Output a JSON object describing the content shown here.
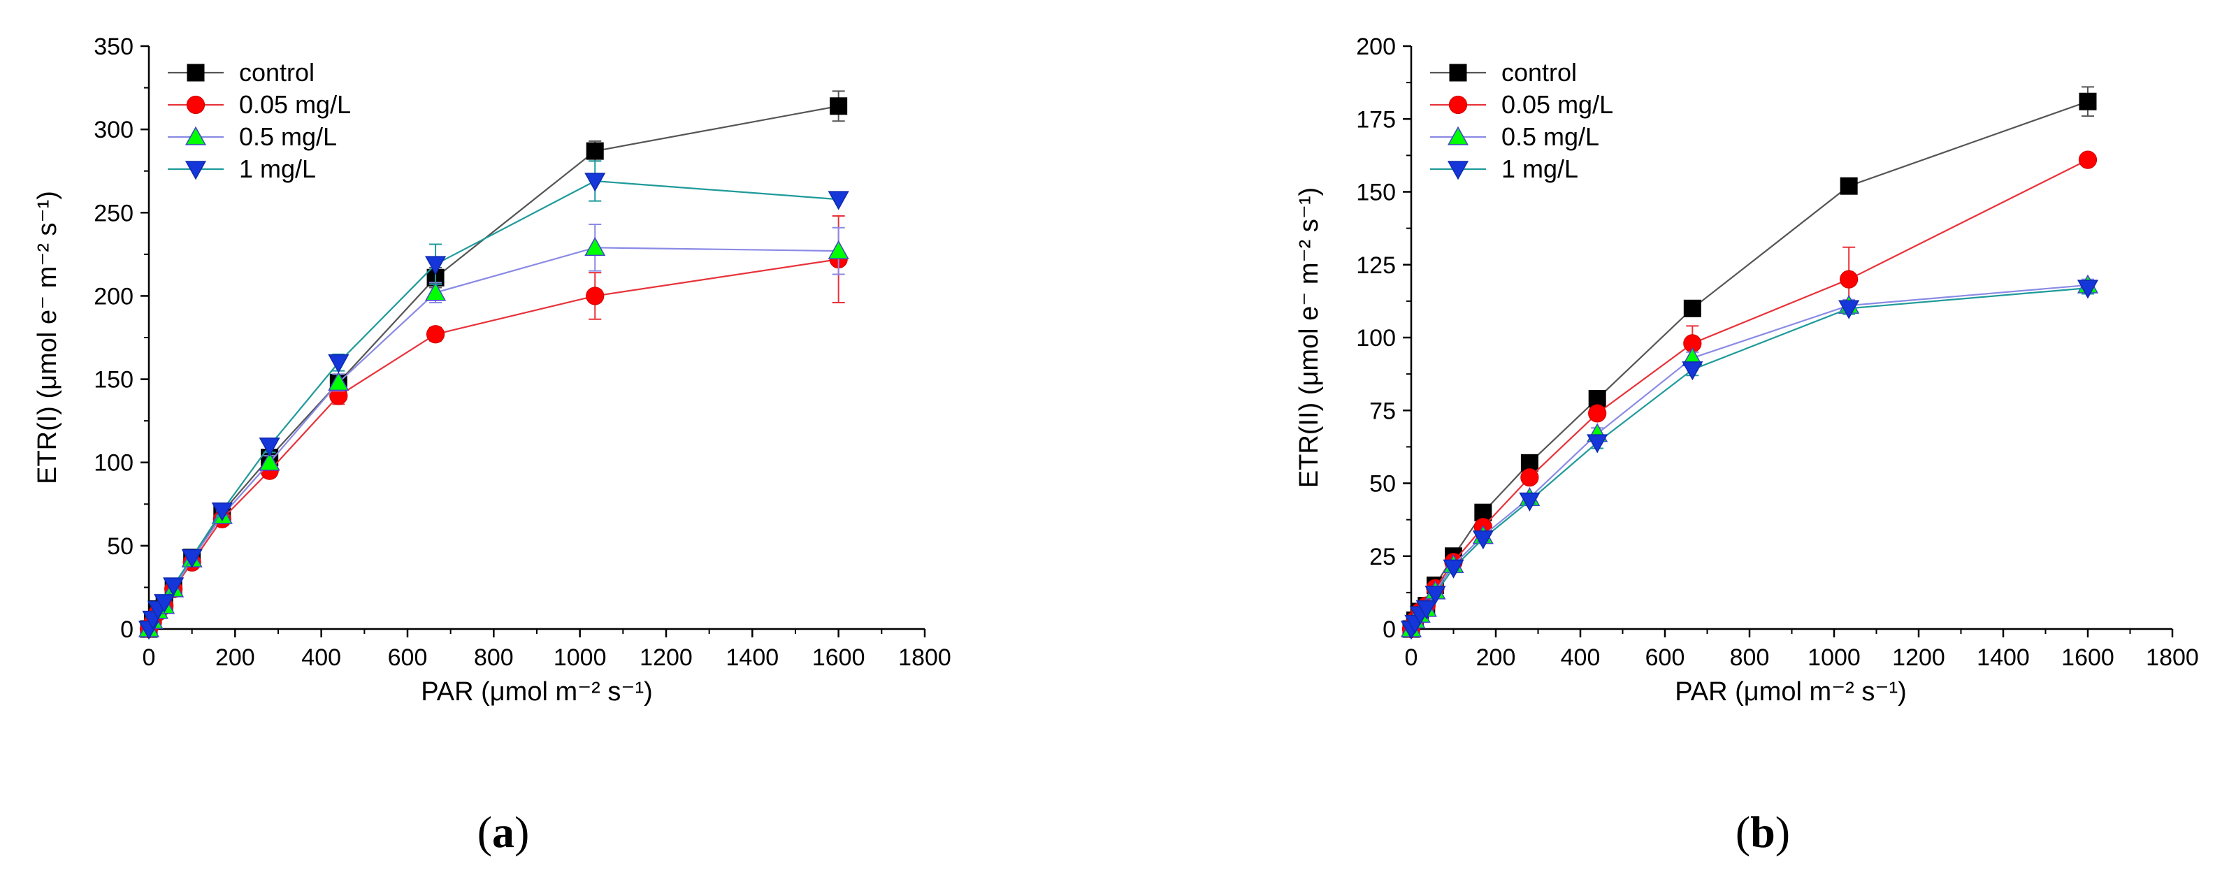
{
  "chart_data": [
    {
      "type": "line",
      "panel_label": "(a)",
      "panel_letter": "a",
      "xlabel": "PAR (μmol m⁻² s⁻¹)",
      "ylabel": "ETR(I) (μmol e⁻ m⁻² s⁻¹)",
      "xlim": [
        0,
        1800
      ],
      "ylim": [
        0,
        350
      ],
      "xticks": [
        "0",
        "200",
        "400",
        "600",
        "800",
        "1000",
        "1200",
        "1400",
        "1600",
        "1800"
      ],
      "yticks": [
        "0",
        "50",
        "100",
        "150",
        "200",
        "250",
        "300",
        "350"
      ],
      "legend_position": "top-left",
      "x": [
        0,
        9,
        21,
        36,
        57,
        100,
        170,
        280,
        440,
        665,
        1035,
        1600
      ],
      "series": [
        {
          "name": "control",
          "color": "#000000",
          "line_color": "#555555",
          "marker": "square",
          "values": [
            0,
            5,
            12,
            15,
            25,
            43,
            70,
            103,
            148,
            211,
            287,
            314
          ],
          "errors": [
            0,
            0,
            0,
            0,
            0,
            2,
            3,
            4,
            5,
            6,
            6,
            9
          ]
        },
        {
          "name": "0.05 mg/L",
          "color": "#ff0000",
          "line_color": "#e8323a",
          "marker": "circle",
          "values": [
            0,
            4,
            10,
            14,
            24,
            40,
            66,
            95,
            140,
            177,
            200,
            222
          ],
          "errors": [
            0,
            0,
            0,
            0,
            0,
            2,
            3,
            4,
            5,
            4,
            14,
            26
          ]
        },
        {
          "name": "0.5 mg/L",
          "color": "#00ff00",
          "line_color": "#8a8ae6",
          "marker": "triangle-up",
          "values": [
            0,
            5,
            11,
            14,
            24,
            42,
            68,
            100,
            148,
            202,
            229,
            227
          ],
          "errors": [
            0,
            0,
            0,
            0,
            0,
            2,
            3,
            4,
            5,
            6,
            14,
            14
          ]
        },
        {
          "name": "1 mg/L",
          "color": "#1536d8",
          "line_color": "#1f9a9a",
          "marker": "triangle-down",
          "values": [
            0,
            6,
            12,
            16,
            26,
            43,
            71,
            110,
            160,
            219,
            269,
            258
          ],
          "errors": [
            0,
            0,
            0,
            0,
            0,
            2,
            3,
            4,
            5,
            12,
            12,
            0
          ]
        }
      ]
    },
    {
      "type": "line",
      "panel_label": "(b)",
      "panel_letter": "b",
      "xlabel": "PAR (μmol m⁻² s⁻¹)",
      "ylabel": "ETR(II) (μmol e⁻ m⁻² s⁻¹)",
      "xlim": [
        0,
        1800
      ],
      "ylim": [
        0,
        200
      ],
      "xticks": [
        "0",
        "200",
        "400",
        "600",
        "800",
        "1000",
        "1200",
        "1400",
        "1600",
        "1800"
      ],
      "yticks": [
        "0",
        "25",
        "50",
        "75",
        "100",
        "125",
        "150",
        "175",
        "200"
      ],
      "legend_position": "top-left",
      "x": [
        0,
        9,
        21,
        36,
        57,
        100,
        170,
        280,
        440,
        665,
        1035,
        1600
      ],
      "series": [
        {
          "name": "control",
          "color": "#000000",
          "line_color": "#555555",
          "marker": "square",
          "values": [
            0,
            3,
            6,
            8,
            15,
            25,
            40,
            57,
            79,
            110,
            152,
            181
          ],
          "errors": [
            0,
            0,
            0,
            0,
            0,
            1,
            1,
            1,
            2,
            2,
            2,
            5
          ]
        },
        {
          "name": "0.05 mg/L",
          "color": "#ff0000",
          "line_color": "#e8323a",
          "marker": "circle",
          "values": [
            0,
            3,
            6,
            8,
            14,
            23,
            35,
            52,
            74,
            98,
            120,
            161
          ],
          "errors": [
            0,
            0,
            0,
            0,
            0,
            1,
            1,
            2,
            2,
            6,
            11,
            1
          ]
        },
        {
          "name": "0.5 mg/L",
          "color": "#00ff00",
          "line_color": "#8a8ae6",
          "marker": "triangle-up",
          "values": [
            0,
            3,
            5,
            7,
            13,
            22,
            32,
            45,
            67,
            93,
            111,
            118
          ],
          "errors": [
            0,
            0,
            0,
            0,
            0,
            1,
            1,
            1,
            2,
            2,
            2,
            2
          ]
        },
        {
          "name": "1 mg/L",
          "color": "#1536d8",
          "line_color": "#1f9a9a",
          "marker": "triangle-down",
          "values": [
            0,
            2,
            5,
            7,
            12,
            21,
            31,
            44,
            64,
            89,
            110,
            117
          ],
          "errors": [
            0,
            0,
            0,
            0,
            0,
            1,
            1,
            1,
            2,
            2,
            2,
            2
          ]
        }
      ]
    }
  ]
}
